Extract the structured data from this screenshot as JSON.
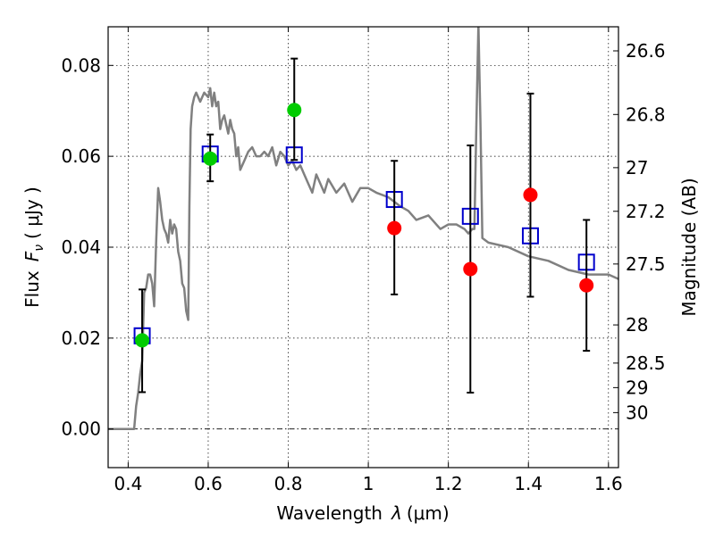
{
  "chart_data": {
    "type": "scatter",
    "xlabel": "Wavelength",
    "xlabel_symbol": "λ",
    "xlabel_unit": "(μm)",
    "ylabel": "Flux",
    "ylabel_symbol": "F",
    "ylabel_sub": "ν",
    "ylabel_unit": "( μJy )",
    "y2label": "Magnitude (AB)",
    "xlim": [
      0.35,
      1.625
    ],
    "ylim": [
      -0.0085,
      0.0885
    ],
    "grid": true,
    "x_ticks": [
      0.4,
      0.6,
      0.8,
      1.0,
      1.2,
      1.4,
      1.6
    ],
    "x_tick_labels": [
      "0.4",
      "0.6",
      "0.8",
      "1",
      "1.2",
      "1.4",
      "1.6"
    ],
    "y_ticks": [
      0.0,
      0.02,
      0.04,
      0.06,
      0.08
    ],
    "y_tick_labels": [
      "0.00",
      "0.02",
      "0.04",
      "0.06",
      "0.08"
    ],
    "y2_ticks": [
      {
        "label": "26.6",
        "flux": 0.0832
      },
      {
        "label": "26.8",
        "flux": 0.0692
      },
      {
        "label": "27",
        "flux": 0.0575
      },
      {
        "label": "27.2",
        "flux": 0.0479
      },
      {
        "label": "27.5",
        "flux": 0.0363
      },
      {
        "label": "28",
        "flux": 0.0229
      },
      {
        "label": "28.5",
        "flux": 0.0145
      },
      {
        "label": "29",
        "flux": 0.0091
      },
      {
        "label": "30",
        "flux": 0.0036
      }
    ],
    "reference_line": {
      "y": 0.0,
      "style": "dash-dot"
    },
    "model_sed": {
      "color": "#808080",
      "x": [
        0.35,
        0.415,
        0.42,
        0.425,
        0.43,
        0.435,
        0.44,
        0.445,
        0.45,
        0.455,
        0.46,
        0.465,
        0.47,
        0.475,
        0.48,
        0.485,
        0.49,
        0.495,
        0.5,
        0.505,
        0.51,
        0.515,
        0.52,
        0.525,
        0.53,
        0.535,
        0.54,
        0.545,
        0.55,
        0.553,
        0.556,
        0.56,
        0.565,
        0.57,
        0.58,
        0.59,
        0.6,
        0.605,
        0.61,
        0.615,
        0.62,
        0.625,
        0.63,
        0.635,
        0.64,
        0.645,
        0.65,
        0.655,
        0.66,
        0.665,
        0.67,
        0.675,
        0.68,
        0.69,
        0.7,
        0.71,
        0.72,
        0.73,
        0.74,
        0.75,
        0.76,
        0.77,
        0.78,
        0.79,
        0.8,
        0.81,
        0.82,
        0.83,
        0.84,
        0.85,
        0.86,
        0.87,
        0.88,
        0.89,
        0.9,
        0.92,
        0.94,
        0.96,
        0.98,
        1.0,
        1.02,
        1.05,
        1.08,
        1.1,
        1.12,
        1.15,
        1.18,
        1.2,
        1.22,
        1.24,
        1.25,
        1.26,
        1.265,
        1.27,
        1.275,
        1.28,
        1.285,
        1.3,
        1.35,
        1.4,
        1.45,
        1.5,
        1.55,
        1.6,
        1.625
      ],
      "y": [
        0.0,
        0.0,
        0.005,
        0.008,
        0.012,
        0.015,
        0.03,
        0.031,
        0.034,
        0.034,
        0.032,
        0.027,
        0.041,
        0.053,
        0.05,
        0.046,
        0.044,
        0.043,
        0.041,
        0.046,
        0.043,
        0.045,
        0.044,
        0.039,
        0.037,
        0.032,
        0.031,
        0.026,
        0.024,
        0.049,
        0.066,
        0.071,
        0.073,
        0.074,
        0.072,
        0.074,
        0.073,
        0.075,
        0.071,
        0.074,
        0.071,
        0.072,
        0.066,
        0.068,
        0.069,
        0.067,
        0.065,
        0.068,
        0.066,
        0.065,
        0.06,
        0.062,
        0.057,
        0.059,
        0.061,
        0.062,
        0.06,
        0.06,
        0.061,
        0.06,
        0.062,
        0.058,
        0.061,
        0.06,
        0.058,
        0.059,
        0.057,
        0.058,
        0.056,
        0.054,
        0.052,
        0.056,
        0.054,
        0.052,
        0.055,
        0.052,
        0.054,
        0.05,
        0.053,
        0.053,
        0.052,
        0.051,
        0.049,
        0.048,
        0.046,
        0.047,
        0.044,
        0.045,
        0.045,
        0.044,
        0.043,
        0.044,
        0.044,
        0.067,
        0.089,
        0.068,
        0.042,
        0.041,
        0.04,
        0.038,
        0.037,
        0.035,
        0.034,
        0.034,
        0.033
      ]
    },
    "model_photometry": {
      "marker": "open-square",
      "color": "#0000cc",
      "x": [
        0.435,
        0.605,
        0.815,
        1.065,
        1.255,
        1.405,
        1.545
      ],
      "y": [
        0.0205,
        0.0605,
        0.0603,
        0.0505,
        0.0468,
        0.0425,
        0.0367
      ]
    },
    "observed": {
      "marker": "filled-circle",
      "error_bar_color": "#000000",
      "x": [
        0.435,
        0.605,
        0.815,
        1.065,
        1.255,
        1.405,
        1.545
      ],
      "y": [
        0.0195,
        0.0595,
        0.0702,
        0.0442,
        0.0352,
        0.0515,
        0.0316
      ],
      "err_low": [
        0.0081,
        0.0545,
        0.0592,
        0.0296,
        0.008,
        0.0291,
        0.0172
      ],
      "err_high": [
        0.0307,
        0.0648,
        0.0815,
        0.059,
        0.0624,
        0.0738,
        0.046
      ],
      "colors": [
        "#00cc00",
        "#00cc00",
        "#00cc00",
        "#ff0000",
        "#ff0000",
        "#ff0000",
        "#ff0000"
      ]
    }
  }
}
